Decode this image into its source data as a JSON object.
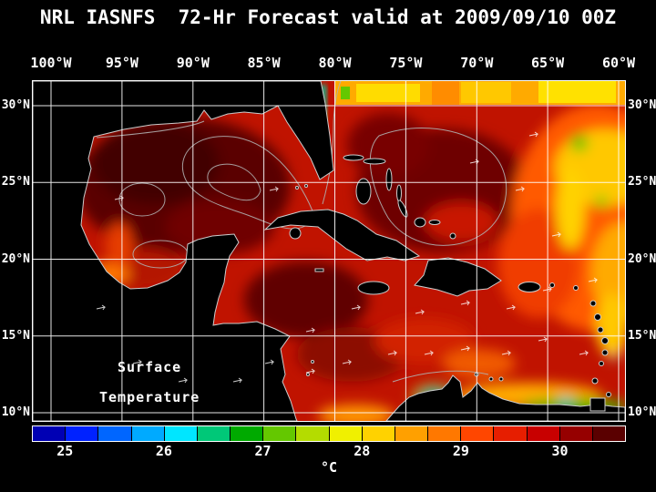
{
  "title": "NRL IASNFS  72-Hr Forecast valid at 2009/09/10 00Z",
  "axes": {
    "longitude_ticks": [
      "100°W",
      "95°W",
      "90°W",
      "85°W",
      "80°W",
      "75°W",
      "70°W",
      "65°W",
      "60°W"
    ],
    "latitude_ticks": [
      "30°N",
      "25°N",
      "20°N",
      "15°N",
      "10°N"
    ]
  },
  "map": {
    "annotation_line1": "Surface",
    "annotation_line2": "Temperature"
  },
  "colorbar": {
    "unit": "°C",
    "tick_labels": [
      "25",
      "26",
      "27",
      "28",
      "29",
      "30"
    ],
    "segment_colors": [
      "#0000b4",
      "#0022ff",
      "#0066ff",
      "#00aaff",
      "#00e6ff",
      "#00c878",
      "#00aa00",
      "#64c800",
      "#b4dc00",
      "#f0f000",
      "#ffd200",
      "#ffa000",
      "#ff7800",
      "#ff4600",
      "#e61e00",
      "#c80000",
      "#960000",
      "#5a0000"
    ]
  },
  "chart_data": {
    "type": "heatmap",
    "title": "NRL IASNFS 72-Hr Forecast valid at 2009/09/10 00Z",
    "variable": "Surface Temperature",
    "unit": "°C",
    "x_axis": {
      "kind": "longitude",
      "tick_labels": [
        "100°W",
        "95°W",
        "90°W",
        "85°W",
        "80°W",
        "75°W",
        "70°W",
        "65°W",
        "60°W"
      ]
    },
    "y_axis": {
      "kind": "latitude",
      "tick_labels": [
        "30°N",
        "25°N",
        "20°N",
        "15°N",
        "10°N"
      ]
    },
    "colorbar_ticks": [
      25,
      26,
      27,
      28,
      29,
      30
    ],
    "grid": true,
    "layout": {
      "background": "#000000",
      "grid_color": "#ffffff",
      "land_color": "#000000",
      "coastline_color": "#cccccc"
    }
  }
}
